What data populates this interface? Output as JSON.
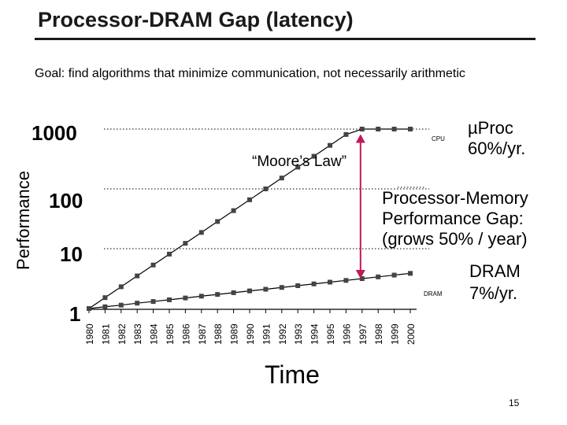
{
  "title": "Processor-DRAM Gap (latency)",
  "subtitle": "Goal: find algorithms that minimize communication, not necessarily arithmetic",
  "page_number": "15",
  "colors": {
    "line": "#000000",
    "marker": "#444444",
    "gap_arrow": "#c0185a",
    "title": "#1a1a1a"
  },
  "chart_data": {
    "type": "line",
    "title": "Processor-DRAM Gap (latency)",
    "xlabel": "Time",
    "ylabel": "Performance",
    "yscale": "log",
    "ylim": [
      1,
      1000
    ],
    "yticks": [
      "1000",
      "100",
      "10",
      "1"
    ],
    "grid": "dotted horizontal at 10, 100, 1000",
    "categories": [
      "1980",
      "1981",
      "1982",
      "1983",
      "1984",
      "1985",
      "1986",
      "1987",
      "1988",
      "1989",
      "1990",
      "1991",
      "1992",
      "1993",
      "1994",
      "1995",
      "1996",
      "1997",
      "1998",
      "1999",
      "2000"
    ],
    "series": [
      {
        "name": "CPU",
        "values": [
          1,
          1.52,
          2.31,
          3.51,
          5.34,
          8.12,
          12.3,
          18.7,
          28.5,
          43.3,
          65.8,
          100,
          152,
          231,
          351,
          534,
          812,
          1000,
          1000,
          1000,
          1000
        ]
      },
      {
        "name": "DRAM",
        "values": [
          1,
          1.07,
          1.14,
          1.23,
          1.31,
          1.4,
          1.5,
          1.61,
          1.72,
          1.84,
          1.97,
          2.1,
          2.25,
          2.41,
          2.58,
          2.76,
          2.95,
          3.16,
          3.38,
          3.62,
          3.87
        ]
      }
    ],
    "annotations": {
      "moores_law": "“Moore’s Law”",
      "cpu_tag": "CPU",
      "dram_tag": "DRAM",
      "proc_rate_1": "µProc",
      "proc_rate_2": "60%/yr.",
      "gap_1": "Processor-Memory",
      "gap_2": "Performance Gap:",
      "gap_3": "(grows 50% / year)",
      "dram_rate_1": "DRAM",
      "dram_rate_2": "7%/yr."
    }
  }
}
